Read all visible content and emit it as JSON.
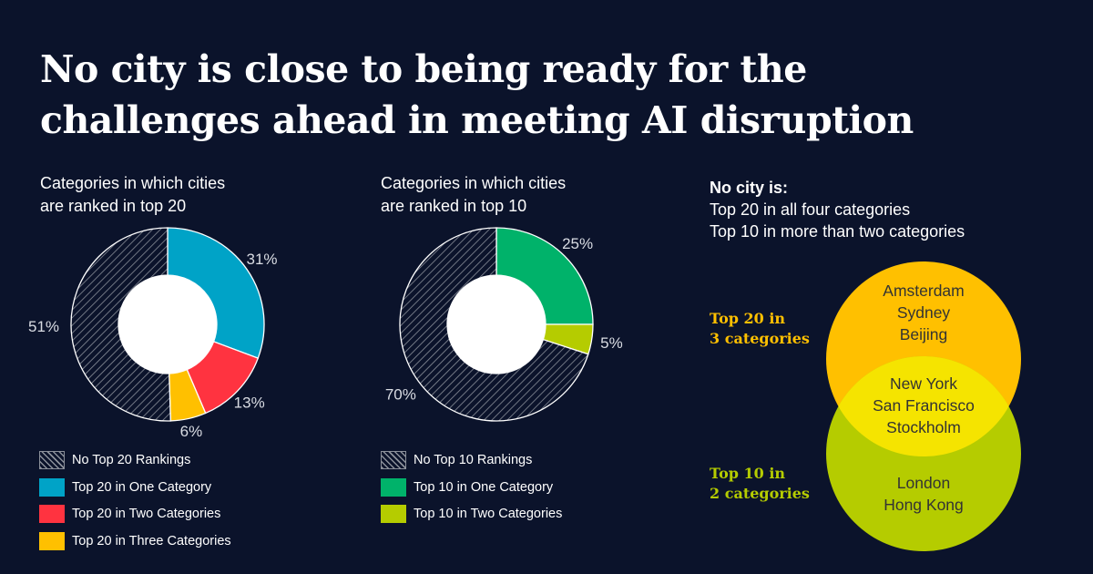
{
  "headline": {
    "line1": "No city is close to being ready for the",
    "line2": "challenges ahead in meeting AI disruption"
  },
  "colors": {
    "background": "#0b132b",
    "hatch": "#4d4d4d",
    "one_category": "#00a3c7",
    "two_categories": "#ff3340",
    "three_categories": "#ffc000",
    "top10_one": "#00b26a",
    "top10_two": "#b5cc00",
    "venn_top": "#ffc000",
    "venn_bottom": "#b5cc00",
    "venn_overlap": "#f5e400"
  },
  "chart_data": [
    {
      "type": "pie",
      "title_line1": "Categories in which cities",
      "title_line2": "are ranked in top 20",
      "slices": [
        {
          "label": "Top 20 in One Category",
          "value": 31,
          "display": "31%",
          "color": "#00a3c7"
        },
        {
          "label": "Top 20 in Two Categories",
          "value": 13,
          "display": "13%",
          "color": "#ff3340"
        },
        {
          "label": "Top 20 in Three Categories",
          "value": 6,
          "display": "6%",
          "color": "#ffc000"
        },
        {
          "label": "No Top 20 Rankings",
          "value": 51,
          "display": "51%",
          "color": "hatch"
        }
      ],
      "legend": [
        {
          "label": "No Top 20 Rankings",
          "color": "hatch"
        },
        {
          "label": "Top 20 in One Category",
          "color": "#00a3c7"
        },
        {
          "label": "Top 20 in Two Categories",
          "color": "#ff3340"
        },
        {
          "label": "Top 20 in Three Categories",
          "color": "#ffc000"
        }
      ]
    },
    {
      "type": "pie",
      "title_line1": "Categories in which cities",
      "title_line2": "are ranked in top 10",
      "slices": [
        {
          "label": "Top 10 in One Category",
          "value": 25,
          "display": "25%",
          "color": "#00b26a"
        },
        {
          "label": "Top 10 in Two Categories",
          "value": 5,
          "display": "5%",
          "color": "#b5cc00"
        },
        {
          "label": "No Top 10 Rankings",
          "value": 70,
          "display": "70%",
          "color": "hatch"
        }
      ],
      "legend": [
        {
          "label": "No Top 10 Rankings",
          "color": "hatch"
        },
        {
          "label": "Top 10 in One Category",
          "color": "#00b26a"
        },
        {
          "label": "Top 10 in Two Categories",
          "color": "#b5cc00"
        }
      ]
    }
  ],
  "note": {
    "lead": "No city is:",
    "line1": "Top 20 in all four categories",
    "line2": "Top 10 in more than two categories"
  },
  "venn": {
    "top_label_line1": "Top 20 in",
    "top_label_line2": "3 categories",
    "bottom_label_line1": "Top 10 in",
    "bottom_label_line2": "2 categories",
    "top_only": [
      "Amsterdam",
      "Sydney",
      "Beijing"
    ],
    "overlap": [
      "New York",
      "San Francisco",
      "Stockholm"
    ],
    "bottom_only": [
      "London",
      "Hong Kong"
    ]
  }
}
